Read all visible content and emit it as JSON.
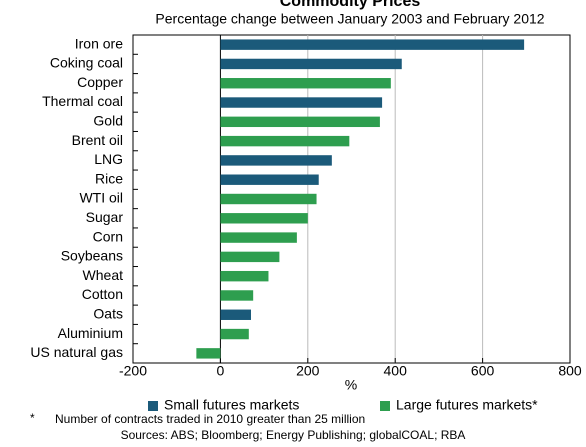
{
  "chart_data": {
    "type": "bar",
    "orientation": "horizontal",
    "title": "Commodity Prices",
    "subtitle": "Percentage change between January 2003 and February 2012",
    "categories": [
      "Iron ore",
      "Coking coal",
      "Copper",
      "Thermal coal",
      "Gold",
      "Brent oil",
      "LNG",
      "Rice",
      "WTI oil",
      "Sugar",
      "Corn",
      "Soybeans",
      "Wheat",
      "Cotton",
      "Oats",
      "Aluminium",
      "US natural gas"
    ],
    "series": [
      {
        "name": "Small futures markets",
        "color": "#1b5a7a",
        "values": [
          695,
          415,
          null,
          370,
          null,
          null,
          255,
          225,
          null,
          null,
          null,
          null,
          null,
          null,
          70,
          null,
          null
        ]
      },
      {
        "name": "Large futures markets*",
        "color": "#2e9e4f",
        "values": [
          null,
          null,
          390,
          null,
          365,
          295,
          null,
          null,
          220,
          200,
          175,
          135,
          110,
          75,
          null,
          65,
          -55
        ]
      }
    ],
    "xlim": [
      -200,
      800
    ],
    "xticks": [
      -200,
      0,
      200,
      400,
      600,
      800
    ],
    "xlabel": "%",
    "grid": true,
    "legend": "bottom",
    "footnote": "Number of contracts traded in 2010 greater than 25 million",
    "footnote_marker": "*",
    "source": "Sources: ABS; Bloomberg; Energy Publishing; globalCOAL; RBA"
  }
}
